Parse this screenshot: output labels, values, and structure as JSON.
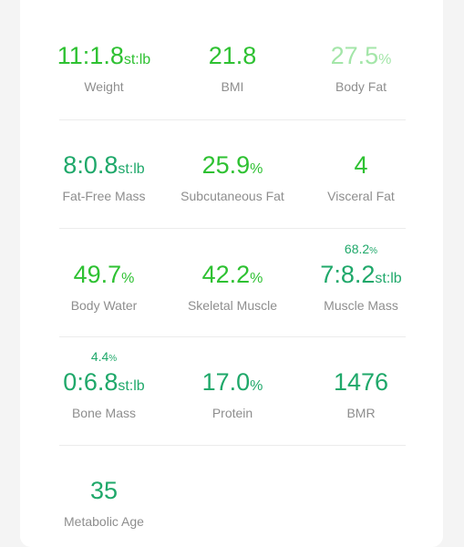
{
  "colors": {
    "green": "#2ec132",
    "teal": "#1fa86a",
    "light_green": "#a4e6a9",
    "label_gray": "#8e8e8e"
  },
  "rows": [
    [
      {
        "value": "11:1.8",
        "unit": "st:lb",
        "label": "Weight",
        "color": "#2ec132"
      },
      {
        "value": "21.8",
        "unit": "",
        "label": "BMI",
        "color": "#2ec132"
      },
      {
        "value": "27.5",
        "unit": "%",
        "label": "Body Fat",
        "color": "#a4e6a9"
      }
    ],
    [
      {
        "value": "8:0.8",
        "unit": "st:lb",
        "label": "Fat-Free Mass",
        "color": "#1fa86a"
      },
      {
        "value": "25.9",
        "unit": "%",
        "label": "Subcutaneous Fat",
        "color": "#2ec132"
      },
      {
        "value": "4",
        "unit": "",
        "label": "Visceral Fat",
        "color": "#2ec132"
      }
    ],
    [
      {
        "value": "49.7",
        "unit": "%",
        "label": "Body Water",
        "color": "#2ec132"
      },
      {
        "value": "42.2",
        "unit": "%",
        "label": "Skeletal Muscle",
        "color": "#2ec132"
      },
      {
        "value": "7:8.2",
        "unit": "st:lb",
        "label": "Muscle Mass",
        "color": "#1fa86a",
        "note": "68.2",
        "note_unit": "%"
      }
    ],
    [
      {
        "value": "0:6.8",
        "unit": "st:lb",
        "label": "Bone Mass",
        "color": "#1fa86a",
        "note": "4.4",
        "note_unit": "%"
      },
      {
        "value": "17.0",
        "unit": "%",
        "label": "Protein",
        "color": "#1fa86a"
      },
      {
        "value": "1476",
        "unit": "",
        "label": "BMR",
        "color": "#1fa86a"
      }
    ],
    [
      {
        "value": "35",
        "unit": "",
        "label": "Metabolic Age",
        "color": "#1fa86a"
      }
    ]
  ]
}
